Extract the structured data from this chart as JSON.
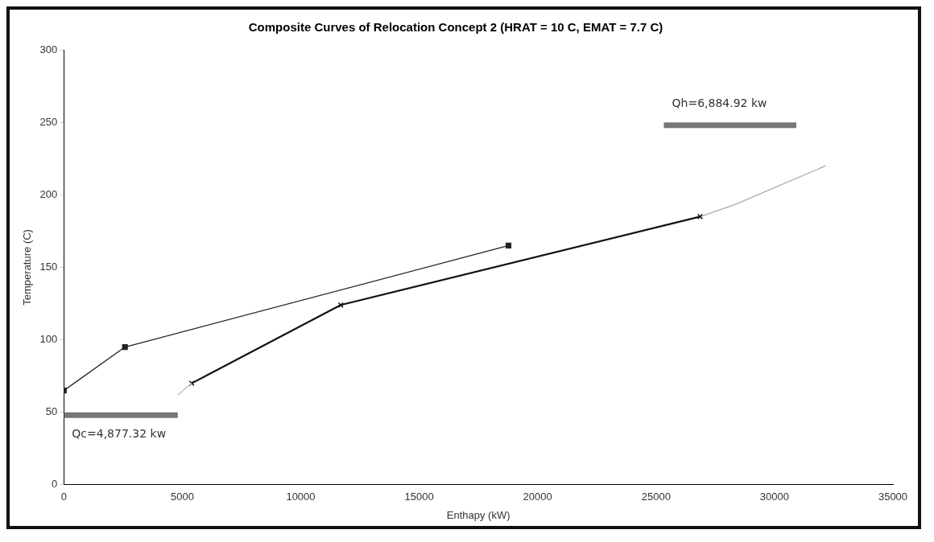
{
  "chart_data": {
    "type": "line",
    "title": "Composite Curves of Relocation Concept 2 (HRAT = 10 C, EMAT = 7.7 C)",
    "xlabel": "Enthapy (kW)",
    "ylabel": "Temperature (C)",
    "xlim": [
      0,
      35000
    ],
    "xticks": [
      0,
      5000,
      10000,
      15000,
      20000,
      25000,
      30000,
      35000
    ],
    "ylim": [
      0,
      300
    ],
    "yticks": [
      0,
      50,
      100,
      150,
      200,
      250,
      300
    ],
    "grid": false,
    "legend": false,
    "line_style": "solid",
    "series": [
      {
        "color": "#222222",
        "marker": "square",
        "x": [
          0,
          2580,
          18770
        ],
        "values": [
          65,
          95,
          165
        ]
      },
      {
        "color": "#bbbbbb",
        "marker": "none",
        "x": [
          4810,
          5400
        ],
        "values": [
          62,
          70
        ]
      },
      {
        "color": "#111111",
        "marker": "cross",
        "x": [
          5400,
          11690,
          26860
        ],
        "values": [
          70,
          124,
          185
        ]
      },
      {
        "color": "#aaaaaa",
        "marker": "none",
        "x": [
          26860,
          28290,
          32160
        ],
        "values": [
          185,
          193,
          220
        ]
      },
      {
        "color": "#777777",
        "marker": "none",
        "x": [
          0,
          4810
        ],
        "values": [
          48,
          48
        ]
      },
      {
        "color": "#777777",
        "marker": "none",
        "x": [
          25330,
          30920
        ],
        "values": [
          248,
          248
        ]
      }
    ],
    "annotations": [
      {
        "text": "Qc=4,877.32 kw",
        "x": 0,
        "y": 48
      },
      {
        "text": "Qh=6,884.92 kw",
        "x": 25330,
        "y": 248
      }
    ]
  }
}
